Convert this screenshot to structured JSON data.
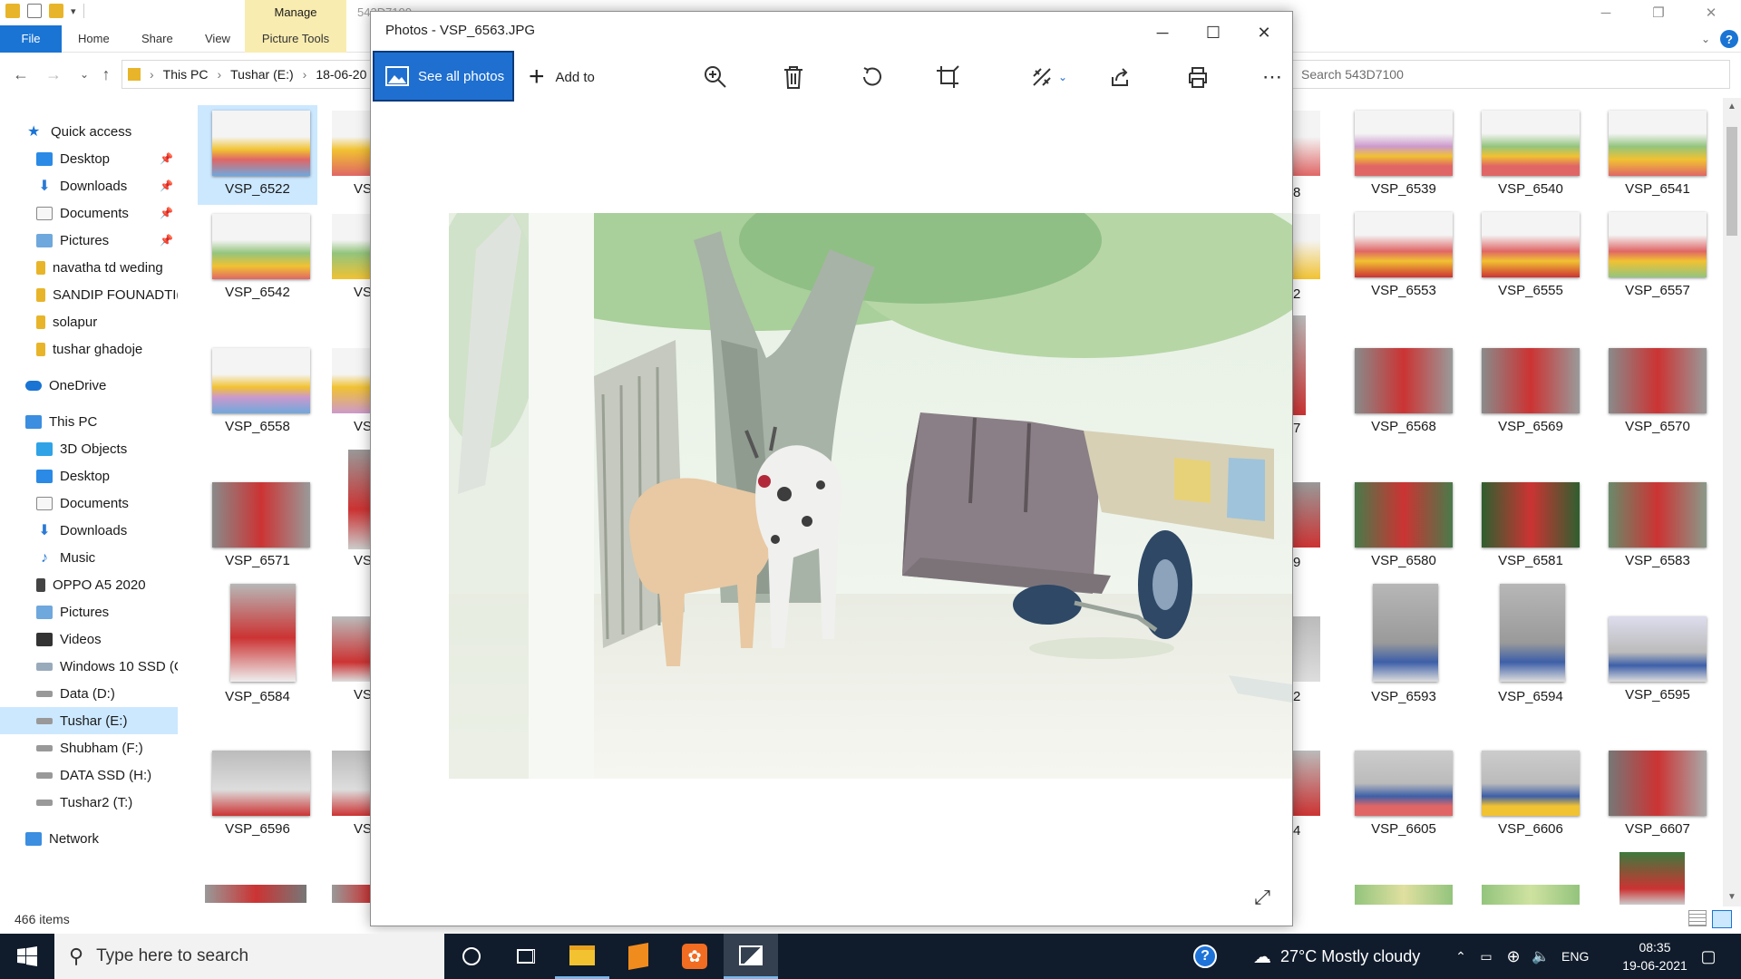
{
  "explorer": {
    "title": "543D7100",
    "manage_label": "Manage",
    "ribbon": {
      "file": "File",
      "home": "Home",
      "share": "Share",
      "view": "View",
      "picture_tools": "Picture Tools"
    },
    "breadcrumb": [
      "This PC",
      "Tushar (E:)",
      "18-06-20"
    ],
    "search_placeholder": "Search 543D7100",
    "status": "466 items",
    "nav": {
      "quick_access": "Quick access",
      "desktop": "Desktop",
      "downloads": "Downloads",
      "documents": "Documents",
      "pictures": "Pictures",
      "folder1": "navatha td weding",
      "folder2": "SANDIP FOUNADTI(",
      "folder3": "solapur",
      "folder4": "tushar ghadoje",
      "onedrive": "OneDrive",
      "this_pc": "This PC",
      "objects3d": "3D Objects",
      "desktop2": "Desktop",
      "documents2": "Documents",
      "downloads2": "Downloads",
      "music": "Music",
      "oppo": "OPPO A5 2020",
      "pictures2": "Pictures",
      "videos": "Videos",
      "win10": "Windows 10 SSD (C",
      "data_d": "Data (D:)",
      "tushar_e": "Tushar (E:)",
      "shubham_f": "Shubham (F:)",
      "datassd_h": "DATA SSD (H:)",
      "tushar2_t": "Tushar2 (T:)",
      "network": "Network"
    },
    "files_left": [
      {
        "name": "VSP_6522",
        "selected": true
      },
      {
        "name": "VSP_6542"
      },
      {
        "name": "VSP_6558"
      },
      {
        "name": "VSP_6571"
      },
      {
        "name": "VSP_6584"
      },
      {
        "name": "VSP_6596"
      }
    ],
    "files_col2": [
      "VS",
      "VS",
      "VS",
      "VS",
      "VS",
      "VS"
    ],
    "files_partial": [
      "8",
      "2",
      "7",
      "9",
      "2",
      "4"
    ],
    "files_right": [
      [
        "VSP_6539",
        "VSP_6540",
        "VSP_6541"
      ],
      [
        "VSP_6553",
        "VSP_6555",
        "VSP_6557"
      ],
      [
        "VSP_6568",
        "VSP_6569",
        "VSP_6570"
      ],
      [
        "VSP_6580",
        "VSP_6581",
        "VSP_6583"
      ],
      [
        "VSP_6593",
        "VSP_6594",
        "VSP_6595"
      ],
      [
        "VSP_6605",
        "VSP_6606",
        "VSP_6607"
      ]
    ]
  },
  "photos": {
    "title": "Photos - VSP_6563.JPG",
    "see_all": "See all photos",
    "add_to": "Add to"
  },
  "taskbar": {
    "search_placeholder": "Type here to search",
    "weather": "27°C  Mostly cloudy",
    "lang": "ENG",
    "time": "08:35",
    "date": "19-06-2021"
  },
  "colors": {
    "accent": "#1e6fd0",
    "taskbar": "#101c2c",
    "selection": "#cce8ff",
    "manage_tab": "#f9ecb0"
  }
}
